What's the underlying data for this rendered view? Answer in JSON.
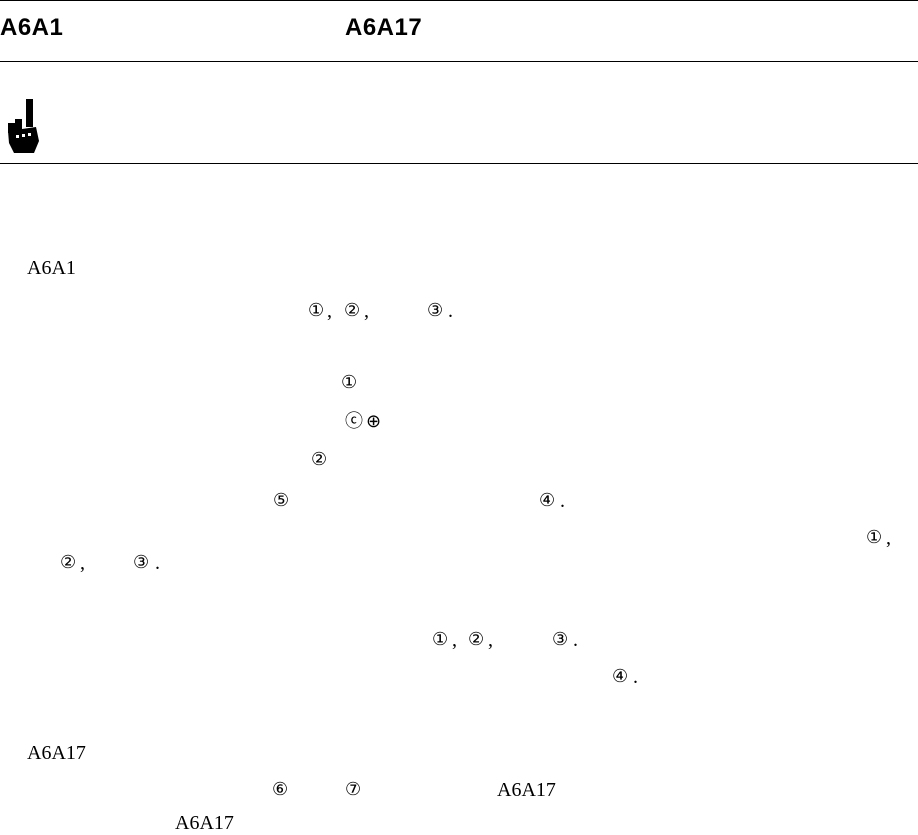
{
  "header": {
    "left": "A6A1",
    "right": "A6A17"
  },
  "lines": [
    {
      "id": "l1",
      "parts": [
        "A6A1"
      ]
    },
    {
      "id": "l2",
      "parts": [
        "①",
        ", ",
        "②",
        ",",
        "③",
        "."
      ]
    },
    {
      "id": "l3",
      "parts": [
        "①"
      ]
    },
    {
      "id": "l4",
      "parts": [
        "ⓒ",
        "⊕"
      ]
    },
    {
      "id": "l5",
      "parts": [
        "②"
      ]
    },
    {
      "id": "l6",
      "parts": [
        "⑤",
        "④",
        "."
      ]
    },
    {
      "id": "l7",
      "parts": [
        "①",
        ","
      ]
    },
    {
      "id": "l8",
      "parts": [
        "②",
        ",",
        "③",
        "."
      ]
    },
    {
      "id": "l9",
      "parts": [
        "①",
        ", ",
        "②",
        ",",
        "③",
        "."
      ]
    },
    {
      "id": "l10",
      "parts": [
        "④",
        "."
      ]
    },
    {
      "id": "l11",
      "parts": [
        "A6A17"
      ]
    },
    {
      "id": "l12",
      "parts": [
        "⑥",
        "⑦",
        "A6A17"
      ]
    },
    {
      "id": "l13",
      "parts": [
        "A6A17"
      ]
    }
  ]
}
